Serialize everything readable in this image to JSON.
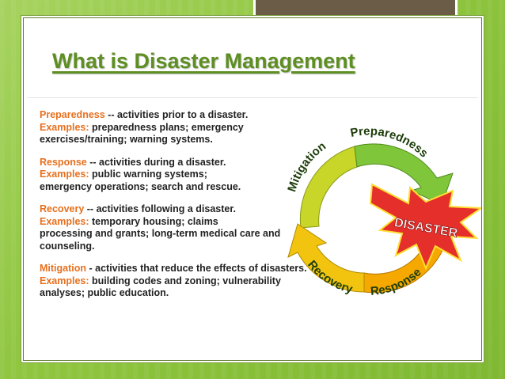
{
  "title": "What is Disaster Management",
  "definitions": [
    {
      "term": "Preparedness",
      "sep": " -- ",
      "description": "activities prior to a disaster.",
      "examples_label": "Examples:",
      "examples_line1": " preparedness plans; emergency",
      "examples_rest": "exercises/training; warning systems."
    },
    {
      "term": "Response",
      "sep": " -- ",
      "description": "activities during a disaster.",
      "examples_label": "Examples:",
      "examples_line1": " public warning systems;",
      "examples_rest": "emergency operations; search and rescue."
    },
    {
      "term": "Recovery",
      "sep": " -- ",
      "description": "activities following a disaster.",
      "examples_label": "Examples:",
      "examples_line1": " temporary housing; claims",
      "examples_rest": "processing and grants; long-term medical care and counseling."
    },
    {
      "term": "Mitigation",
      "sep": " - ",
      "description": "activities that reduce the effects of disasters.",
      "examples_label": "Examples:",
      "examples_line1": " building codes and zoning; vulnerability",
      "examples_rest": "analyses; public education."
    }
  ],
  "cycle": {
    "labels": [
      "Preparedness",
      "Response",
      "Recovery",
      "Mitigation"
    ],
    "center_event": "DISASTER",
    "colors": {
      "preparedness": "#7fc63a",
      "response": "#f5a800",
      "recovery": "#f2c40f",
      "mitigation": "#c8d62a",
      "burst": "#e52f2a",
      "burst_outline": "#ffde33"
    }
  }
}
